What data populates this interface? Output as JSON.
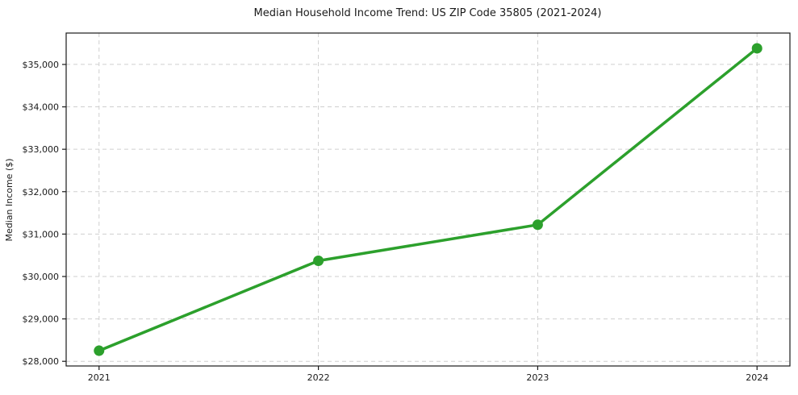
{
  "chart_data": {
    "type": "line",
    "title": "Median Household Income Trend: US ZIP Code 35805 (2021-2024)",
    "xlabel": "",
    "ylabel": "Median Income ($)",
    "x": [
      2021,
      2022,
      2023,
      2024
    ],
    "series": [
      {
        "name": "Median Household Income",
        "values": [
          28250,
          30370,
          31220,
          35380
        ]
      }
    ],
    "xtick_labels": [
      "2021",
      "2022",
      "2023",
      "2024"
    ],
    "ytick_values": [
      28000,
      29000,
      30000,
      31000,
      32000,
      33000,
      34000,
      35000
    ],
    "ytick_labels": [
      "$28,000",
      "$29,000",
      "$30,000",
      "$31,000",
      "$32,000",
      "$33,000",
      "$34,000",
      "$35,000"
    ],
    "xlim": [
      2020.85,
      2024.15
    ],
    "ylim": [
      27890,
      35740
    ],
    "grid": true,
    "grid_style": "dashed",
    "legend": "none",
    "marker": "o",
    "line_width": 3.5,
    "marker_radius": 6.5,
    "colors": {
      "line": "#2ca02c",
      "marker": "#2ca02c",
      "grid": "#cfcfcf",
      "spine": "#1a1a1a",
      "text": "#1a1a1a",
      "background": "#ffffff"
    }
  }
}
